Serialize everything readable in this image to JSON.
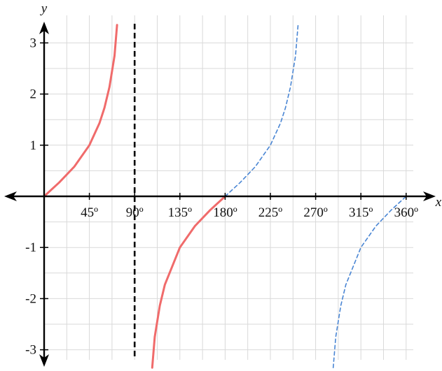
{
  "chart_data": {
    "type": "line",
    "xlabel": "x",
    "ylabel": "y",
    "xlim": [
      0,
      370
    ],
    "ylim": [
      -3.35,
      3.35
    ],
    "x_ticks": [
      {
        "value": 45,
        "label": "45º"
      },
      {
        "value": 90,
        "label": "90º"
      },
      {
        "value": 135,
        "label": "135º"
      },
      {
        "value": 180,
        "label": "180º"
      },
      {
        "value": 225,
        "label": "225º"
      },
      {
        "value": 270,
        "label": "270º"
      },
      {
        "value": 315,
        "label": "315º"
      },
      {
        "value": 360,
        "label": "360º"
      }
    ],
    "y_ticks": [
      {
        "value": 3,
        "label": "3"
      },
      {
        "value": 2,
        "label": "2"
      },
      {
        "value": 1,
        "label": "1"
      },
      {
        "value": -1,
        "label": "-1"
      },
      {
        "value": -2,
        "label": "-2"
      },
      {
        "value": -3,
        "label": "-3"
      }
    ],
    "grid": true,
    "vertical_asymptote": {
      "x": 90,
      "style": "dashed",
      "color": "#000000"
    },
    "series": [
      {
        "style": "solid",
        "color": "#f06b6b",
        "x": [
          0,
          15,
          30,
          45,
          55,
          60,
          65,
          70,
          72.5
        ],
        "y": [
          0,
          0.27,
          0.58,
          1.0,
          1.43,
          1.73,
          2.14,
          2.75,
          3.35
        ]
      },
      {
        "style": "solid",
        "color": "#f06b6b",
        "x": [
          107.5,
          110,
          115,
          120,
          135,
          150,
          165,
          180
        ],
        "y": [
          -3.35,
          -2.75,
          -2.14,
          -1.73,
          -1.0,
          -0.58,
          -0.27,
          0
        ]
      },
      {
        "style": "dashed",
        "color": "#4a86d4",
        "x": [
          180,
          195,
          210,
          225,
          235,
          240,
          245,
          250,
          252.5
        ],
        "y": [
          0,
          0.27,
          0.58,
          1.0,
          1.43,
          1.73,
          2.14,
          2.75,
          3.35
        ]
      },
      {
        "style": "dashed",
        "color": "#4a86d4",
        "x": [
          287.5,
          290,
          295,
          300,
          315,
          330,
          345,
          360
        ],
        "y": [
          -3.35,
          -2.75,
          -2.14,
          -1.73,
          -1.0,
          -0.58,
          -0.27,
          0
        ]
      }
    ],
    "colors": {
      "axis": "#000000",
      "grid": "#d9d9d9"
    }
  }
}
